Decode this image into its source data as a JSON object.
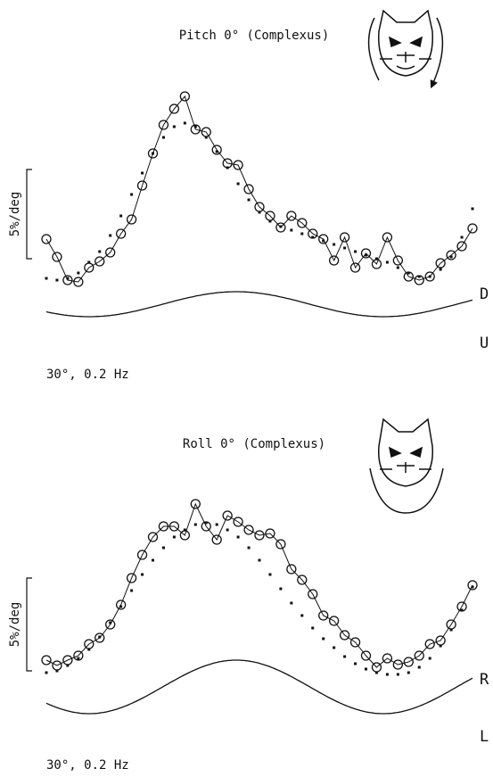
{
  "chart_data": [
    {
      "type": "line",
      "title": "Pitch 0° (Complexus)",
      "scale_label": "5%/deg",
      "stimulus_label": "30°, 0.2 Hz",
      "direction_labels": [
        "D",
        "U"
      ],
      "x": [
        0,
        0.125,
        0.25,
        0.375,
        0.5,
        0.625,
        0.75,
        0.875,
        1,
        1.125,
        1.25,
        1.375,
        1.5,
        1.625,
        1.75,
        1.875,
        2,
        2.125,
        2.25,
        2.375,
        2.5,
        2.625,
        2.75,
        2.875,
        3,
        3.125,
        3.25,
        3.375,
        3.5,
        3.625,
        3.75,
        3.875,
        4,
        4.125,
        4.25,
        4.375,
        4.5,
        4.625,
        4.75,
        4.875,
        5
      ],
      "xlim": [
        0,
        5
      ],
      "ylim": [
        -1.5,
        12
      ],
      "series": [
        {
          "style": "circles",
          "color": "#111",
          "values": [
            1.6,
            0.6,
            -0.7,
            -0.8,
            0,
            0.35,
            0.85,
            1.9,
            2.7,
            4.6,
            6.4,
            8,
            8.9,
            9.6,
            7.75,
            7.6,
            6.6,
            5.85,
            5.75,
            4.4,
            3.4,
            2.9,
            2.25,
            2.9,
            2.5,
            1.9,
            1.6,
            0.4,
            1.7,
            0,
            0.8,
            0.2,
            1.7,
            0.4,
            -0.5,
            -0.7,
            -0.5,
            0.25,
            0.7,
            1.2,
            2.2
          ]
        },
        {
          "style": "dots",
          "color": "#111",
          "values": [
            -0.6,
            -0.7,
            -0.6,
            -0.3,
            0.3,
            0.9,
            1.8,
            2.9,
            4.1,
            5.3,
            6.4,
            7.3,
            7.9,
            8.1,
            7.9,
            7.3,
            6.5,
            5.6,
            4.7,
            3.8,
            3.1,
            2.6,
            2.3,
            2.1,
            1.9,
            1.7,
            1.5,
            1.3,
            1.1,
            0.9,
            0.7,
            0.5,
            0.3,
            0,
            -0.3,
            -0.5,
            -0.5,
            -0.1,
            0.6,
            1.7,
            3.3
          ]
        }
      ]
    },
    {
      "type": "line",
      "title": "Roll 0° (Complexus)",
      "scale_label": "5%/deg",
      "stimulus_label": "30°, 0.2 Hz",
      "direction_labels": [
        "R",
        "L"
      ],
      "x": [
        0,
        0.125,
        0.25,
        0.375,
        0.5,
        0.625,
        0.75,
        0.875,
        1,
        1.125,
        1.25,
        1.375,
        1.5,
        1.625,
        1.75,
        1.875,
        2,
        2.125,
        2.25,
        2.375,
        2.5,
        2.625,
        2.75,
        2.875,
        3,
        3.125,
        3.25,
        3.375,
        3.5,
        3.625,
        3.75,
        3.875,
        4,
        4.125,
        4.25,
        4.375,
        4.5,
        4.625,
        4.75,
        4.875,
        5
      ],
      "xlim": [
        0,
        5
      ],
      "ylim": [
        -1.5,
        12
      ],
      "series": [
        {
          "style": "circles",
          "color": "#111",
          "values": [
            1,
            0.7,
            1,
            1.25,
            1.9,
            2.25,
            3,
            4.1,
            5.6,
            6.9,
            7.9,
            8.5,
            8.5,
            8,
            9.75,
            8.5,
            7.75,
            9.1,
            8.75,
            8.3,
            8,
            8.1,
            7.5,
            6.1,
            5.5,
            4.7,
            3.5,
            3.2,
            2.4,
            2,
            1.25,
            0.6,
            1.1,
            0.75,
            0.9,
            1.25,
            1.9,
            2.1,
            3,
            4,
            5.2
          ]
        },
        {
          "style": "dots",
          "color": "#111",
          "values": [
            0.3,
            0.4,
            0.7,
            1.1,
            1.6,
            2.3,
            3.1,
            4,
            4.9,
            5.8,
            6.6,
            7.3,
            7.9,
            8.3,
            8.6,
            8.7,
            8.6,
            8.3,
            7.9,
            7.3,
            6.6,
            5.8,
            5,
            4.2,
            3.5,
            2.8,
            2.2,
            1.7,
            1.2,
            0.8,
            0.5,
            0.3,
            0.2,
            0.2,
            0.3,
            0.6,
            1.1,
            1.8,
            2.7,
            3.8,
            5.1
          ]
        }
      ]
    }
  ]
}
